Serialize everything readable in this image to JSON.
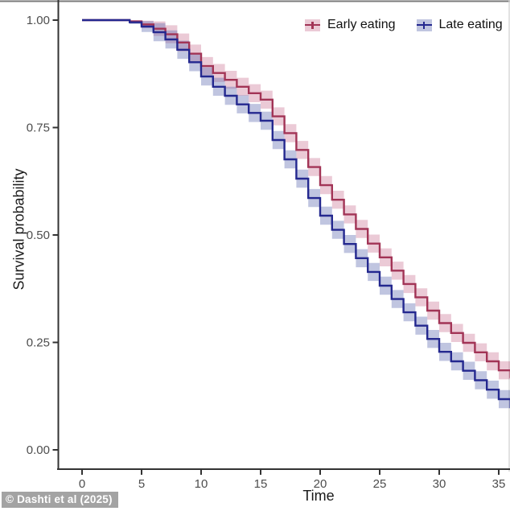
{
  "figure": {
    "watermark": "© Dashti et al (2025)"
  },
  "chart_data": {
    "type": "line",
    "subtype": "kaplan-meier-step",
    "title": "",
    "xlabel": "Time",
    "ylabel": "Survival probability",
    "xlim": [
      0,
      36
    ],
    "ylim": [
      0.0,
      1.0
    ],
    "grid": false,
    "legend_position": "top-right-inside",
    "xticks": [
      0,
      5,
      10,
      15,
      20,
      25,
      30,
      35
    ],
    "yticks": [
      1.0,
      0.75,
      0.5,
      0.25,
      0.0
    ],
    "ytick_labels": [
      "1.00",
      "0.75",
      "0.50",
      "0.25",
      "0.00"
    ],
    "ci_halfwidth": 0.021,
    "x": [
      0,
      1,
      2,
      3,
      4,
      5,
      6,
      7,
      8,
      9,
      10,
      11,
      12,
      13,
      14,
      15,
      16,
      17,
      18,
      19,
      20,
      21,
      22,
      23,
      24,
      25,
      26,
      27,
      28,
      29,
      30,
      31,
      32,
      33,
      34,
      35,
      36
    ],
    "series": [
      {
        "name": "Early eating",
        "line_color": "#a23456",
        "band_color": "rgba(198,104,138,0.35)",
        "values": [
          1.0,
          1.0,
          1.0,
          1.0,
          0.997,
          0.99,
          0.98,
          0.967,
          0.948,
          0.922,
          0.893,
          0.877,
          0.861,
          0.845,
          0.83,
          0.815,
          0.776,
          0.737,
          0.698,
          0.658,
          0.616,
          0.582,
          0.548,
          0.514,
          0.48,
          0.448,
          0.417,
          0.386,
          0.355,
          0.324,
          0.295,
          0.272,
          0.249,
          0.227,
          0.206,
          0.185,
          0.167
        ]
      },
      {
        "name": "Late eating",
        "line_color": "#24288f",
        "band_color": "rgba(98,109,177,0.40)",
        "values": [
          1.0,
          1.0,
          1.0,
          1.0,
          0.995,
          0.985,
          0.972,
          0.955,
          0.931,
          0.902,
          0.869,
          0.845,
          0.824,
          0.804,
          0.784,
          0.766,
          0.721,
          0.676,
          0.631,
          0.586,
          0.545,
          0.512,
          0.479,
          0.446,
          0.414,
          0.382,
          0.351,
          0.32,
          0.289,
          0.258,
          0.228,
          0.206,
          0.184,
          0.162,
          0.14,
          0.118,
          0.097
        ]
      }
    ],
    "axis_color": "#333333",
    "tick_label_color": "#4d4d4d",
    "top_border_color": "#7a7a7a"
  }
}
